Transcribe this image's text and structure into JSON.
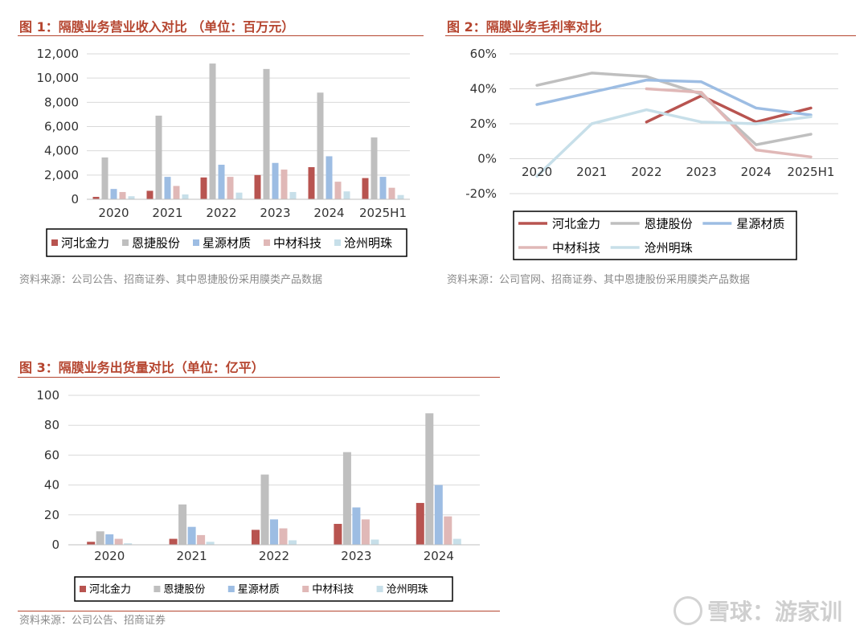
{
  "fig1": {
    "title": "图 1：隔膜业务营业收入对比 （单位：百万元）",
    "source": "资料来源：公司公告、招商证券、其中恩捷股份采用膜类产品数据"
  },
  "fig2": {
    "title": "图 2：隔膜业务毛利率对比",
    "source": "资料来源：公司官网、招商证券、其中恩捷股份采用膜类产品数据"
  },
  "fig3": {
    "title": "图 3：隔膜业务出货量对比（单位：亿平）",
    "source": "资料来源：公司公告、招商证券"
  },
  "watermark": {
    "text": "雪球：游家训"
  },
  "chart_data": [
    {
      "type": "bar",
      "title": "图 1：隔膜业务营业收入对比 （单位：百万元）",
      "categories": [
        "2020",
        "2021",
        "2022",
        "2023",
        "2024",
        "2025H1"
      ],
      "ylim": [
        0,
        12000
      ],
      "yticks": [
        "0",
        "2,000",
        "4,000",
        "6,000",
        "8,000",
        "10,000",
        "12,000"
      ],
      "yticks_values": [
        0,
        2000,
        4000,
        6000,
        8000,
        10000,
        12000
      ],
      "grid": true,
      "legend": "bottom",
      "series": [
        {
          "name": "河北金力",
          "color": "#b85450",
          "values": [
            200,
            700,
            1800,
            2000,
            2650,
            1750
          ]
        },
        {
          "name": "恩捷股份",
          "color": "#bfbfbf",
          "values": [
            3450,
            6900,
            11200,
            10750,
            8800,
            5100
          ]
        },
        {
          "name": "星源材质",
          "color": "#9dbde3",
          "values": [
            850,
            1850,
            2850,
            3000,
            3550,
            1850
          ]
        },
        {
          "name": "中材科技",
          "color": "#e0b8b7",
          "values": [
            600,
            1100,
            1850,
            2450,
            1450,
            950
          ]
        },
        {
          "name": "沧州明珠",
          "color": "#c7dfe9",
          "values": [
            250,
            400,
            550,
            600,
            650,
            350
          ]
        }
      ]
    },
    {
      "type": "line",
      "title": "图 2：隔膜业务毛利率对比",
      "categories": [
        "2020",
        "2021",
        "2022",
        "2023",
        "2024",
        "2025H1"
      ],
      "ylim": [
        -20,
        60
      ],
      "yticks": [
        "-20%",
        "0%",
        "20%",
        "40%",
        "60%"
      ],
      "yticks_values": [
        -20,
        0,
        20,
        40,
        60
      ],
      "grid": true,
      "legend": "bottom",
      "series": [
        {
          "name": "河北金力",
          "color": "#b85450",
          "values": [
            null,
            null,
            21,
            36,
            21,
            29
          ]
        },
        {
          "name": "恩捷股份",
          "color": "#bfbfbf",
          "values": [
            42,
            49,
            47,
            37,
            8,
            14
          ]
        },
        {
          "name": "星源材质",
          "color": "#9dbde3",
          "values": [
            31,
            38,
            45,
            44,
            29,
            25
          ]
        },
        {
          "name": "中材科技",
          "color": "#e0b8b7",
          "values": [
            null,
            null,
            40,
            38,
            5,
            1
          ]
        },
        {
          "name": "沧州明珠",
          "color": "#c7dfe9",
          "values": [
            -10,
            20,
            28,
            21,
            20,
            24
          ]
        }
      ]
    },
    {
      "type": "bar",
      "title": "图 3：隔膜业务出货量对比（单位：亿平）",
      "categories": [
        "2020",
        "2021",
        "2022",
        "2023",
        "2024"
      ],
      "ylim": [
        0,
        100
      ],
      "yticks": [
        "0",
        "20",
        "40",
        "60",
        "80",
        "100"
      ],
      "yticks_values": [
        0,
        20,
        40,
        60,
        80,
        100
      ],
      "grid": true,
      "legend": "bottom",
      "series": [
        {
          "name": "河北金力",
          "color": "#b85450",
          "values": [
            2,
            4,
            10,
            14,
            28
          ]
        },
        {
          "name": "恩捷股份",
          "color": "#bfbfbf",
          "values": [
            9,
            27,
            47,
            62,
            88
          ]
        },
        {
          "name": "星源材质",
          "color": "#9dbde3",
          "values": [
            7,
            12,
            17,
            25,
            40
          ]
        },
        {
          "name": "中材科技",
          "color": "#e0b8b7",
          "values": [
            4,
            6.5,
            11,
            17,
            19
          ]
        },
        {
          "name": "沧州明珠",
          "color": "#c7dfe9",
          "values": [
            1,
            2,
            3,
            3.5,
            4
          ]
        }
      ]
    }
  ]
}
